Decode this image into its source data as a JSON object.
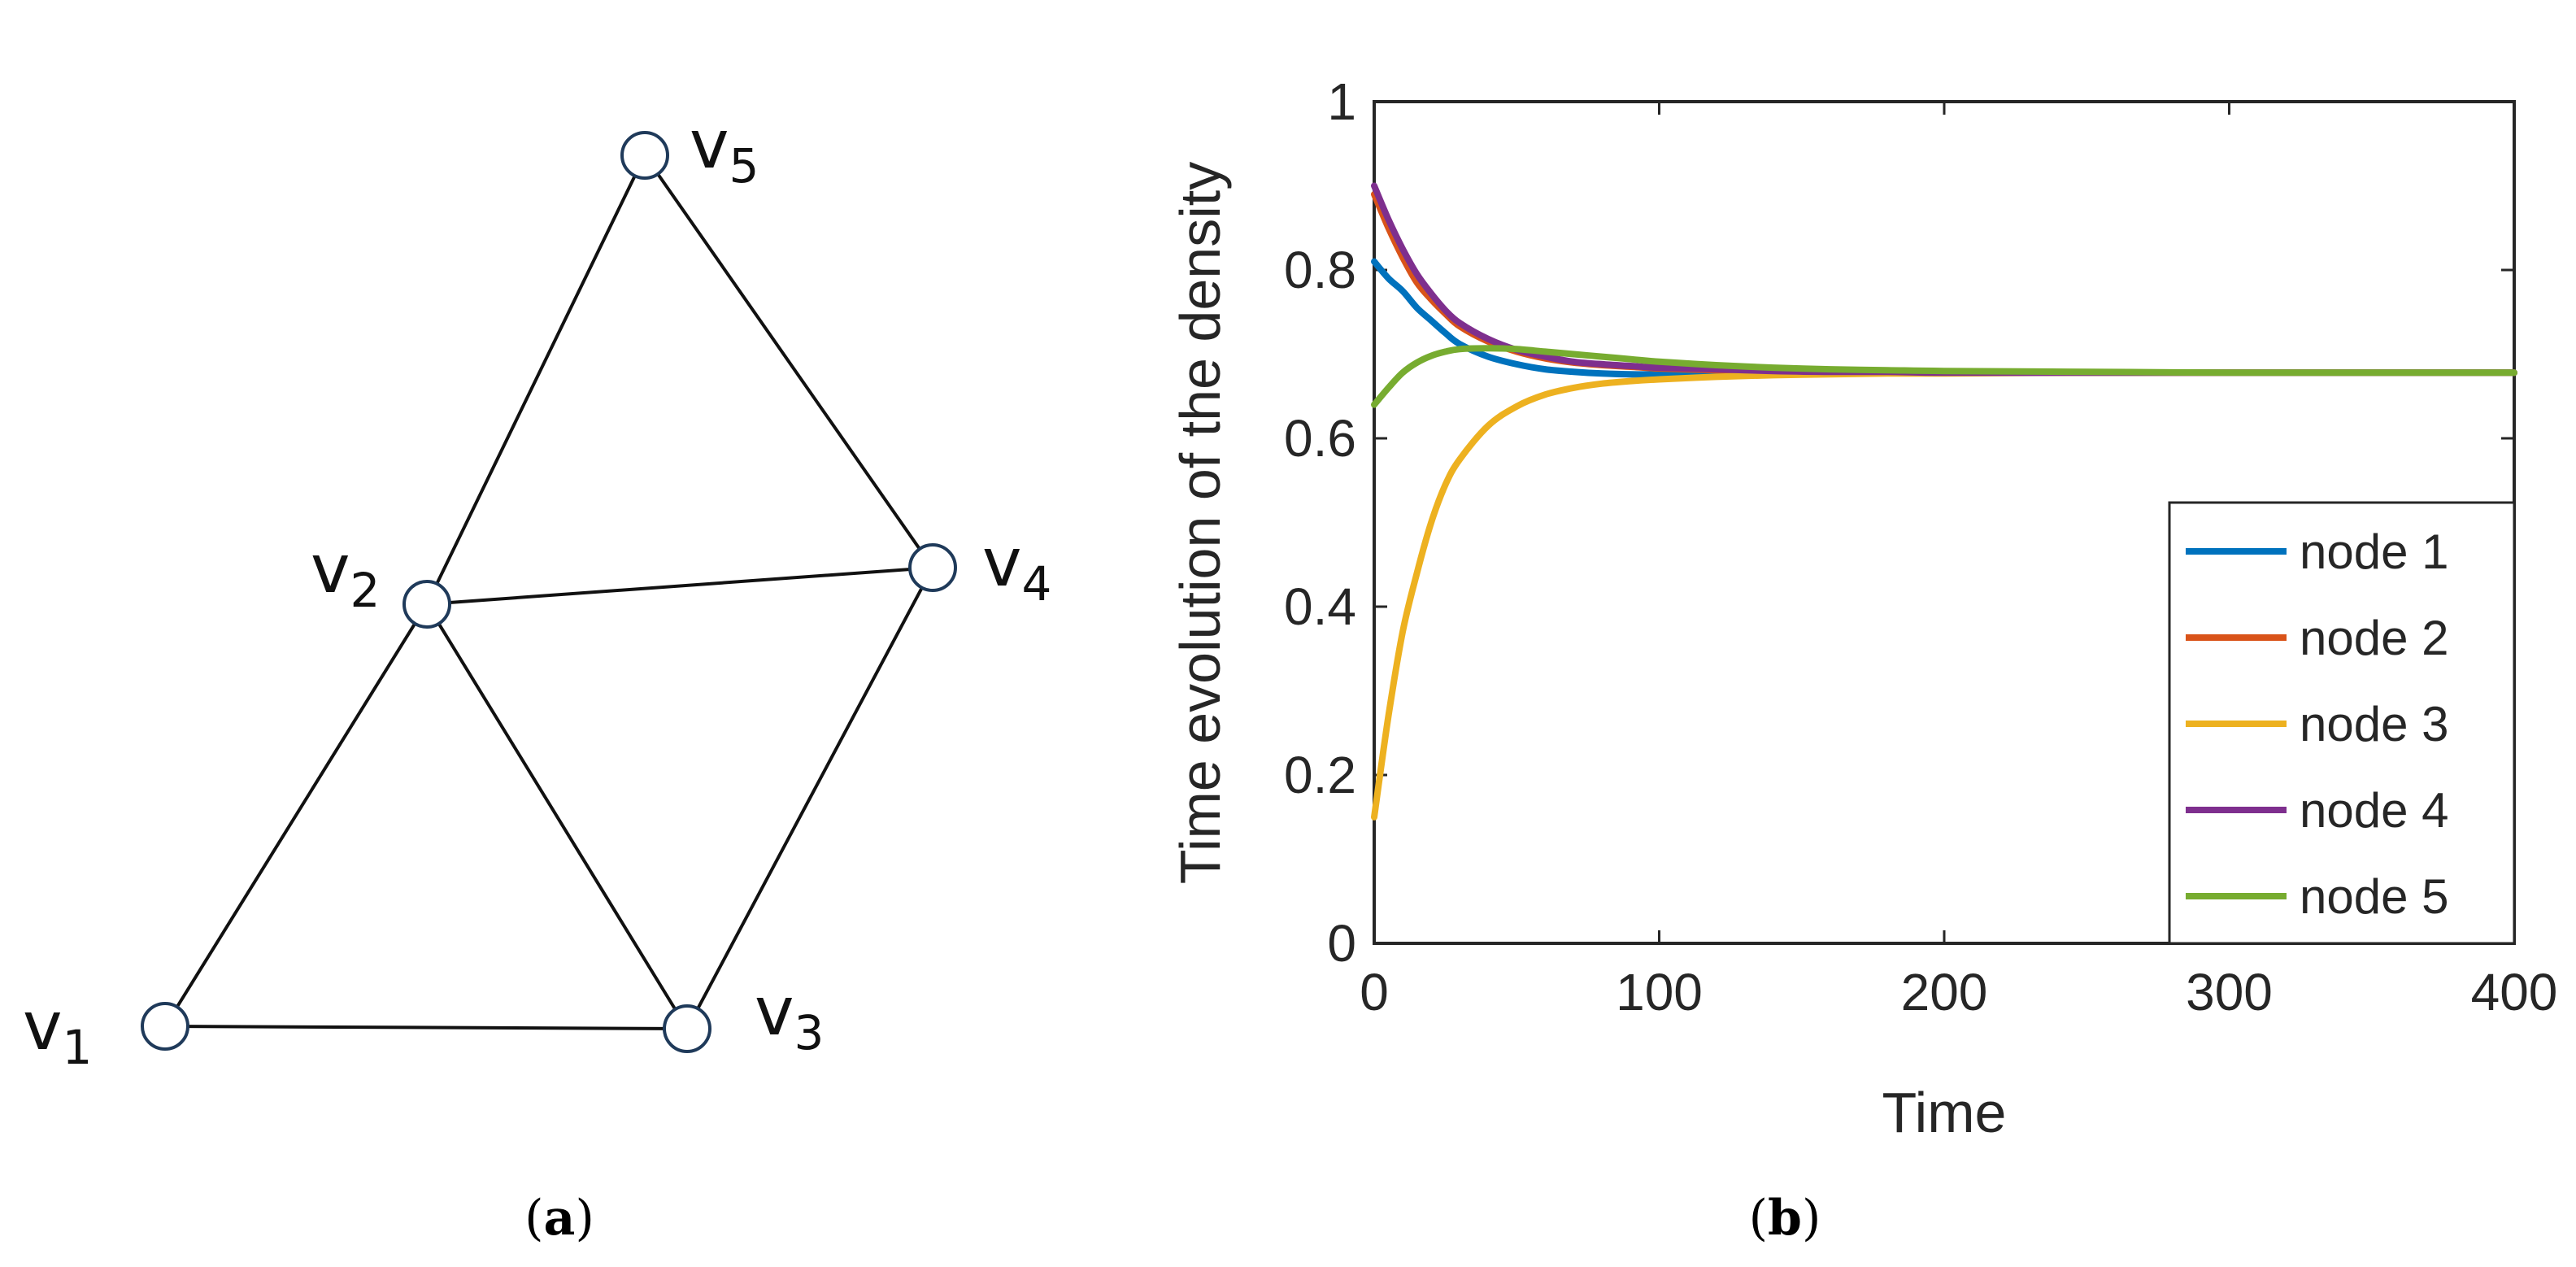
{
  "panel_a": {
    "caption_open": "(",
    "caption_letter": "a",
    "caption_close": ")",
    "nodes": [
      {
        "id": "v1",
        "letter": "v",
        "sub": "1"
      },
      {
        "id": "v2",
        "letter": "v",
        "sub": "2"
      },
      {
        "id": "v3",
        "letter": "v",
        "sub": "3"
      },
      {
        "id": "v4",
        "letter": "v",
        "sub": "4"
      },
      {
        "id": "v5",
        "letter": "v",
        "sub": "5"
      }
    ],
    "edges": [
      [
        "v1",
        "v2"
      ],
      [
        "v1",
        "v3"
      ],
      [
        "v2",
        "v3"
      ],
      [
        "v2",
        "v4"
      ],
      [
        "v2",
        "v5"
      ],
      [
        "v3",
        "v4"
      ],
      [
        "v4",
        "v5"
      ]
    ]
  },
  "panel_b": {
    "caption_open": "(",
    "caption_letter": "b",
    "caption_close": ")"
  },
  "chart_data": {
    "type": "line",
    "title": "",
    "xlabel": "Time",
    "ylabel": "Time evolution of the density",
    "xlim": [
      0,
      400
    ],
    "ylim": [
      0,
      1
    ],
    "xticks": [
      "0",
      "100",
      "200",
      "300",
      "400"
    ],
    "yticks": [
      "0",
      "0.2",
      "0.4",
      "0.6",
      "0.8",
      "1"
    ],
    "legend_position": "bottom-right",
    "grid": false,
    "x": [
      0,
      5,
      10,
      15,
      20,
      25,
      30,
      40,
      50,
      60,
      70,
      80,
      90,
      100,
      120,
      140,
      160,
      180,
      200,
      250,
      300,
      350,
      400
    ],
    "series": [
      {
        "name": "node 1",
        "color": "#0072BD",
        "values": [
          0.81,
          0.79,
          0.775,
          0.755,
          0.74,
          0.725,
          0.712,
          0.697,
          0.688,
          0.682,
          0.679,
          0.677,
          0.676,
          0.676,
          0.677,
          0.677,
          0.677,
          0.678,
          0.678,
          0.678,
          0.678,
          0.678,
          0.678
        ]
      },
      {
        "name": "node 2",
        "color": "#D95319",
        "values": [
          0.89,
          0.85,
          0.815,
          0.785,
          0.765,
          0.748,
          0.733,
          0.715,
          0.703,
          0.695,
          0.69,
          0.687,
          0.685,
          0.683,
          0.681,
          0.68,
          0.679,
          0.679,
          0.678,
          0.678,
          0.678,
          0.678,
          0.678
        ]
      },
      {
        "name": "node 3",
        "color": "#EDB120",
        "values": [
          0.15,
          0.27,
          0.37,
          0.44,
          0.5,
          0.545,
          0.575,
          0.615,
          0.638,
          0.652,
          0.66,
          0.665,
          0.668,
          0.67,
          0.673,
          0.675,
          0.676,
          0.677,
          0.677,
          0.678,
          0.678,
          0.678,
          0.678
        ]
      },
      {
        "name": "node 4",
        "color": "#7E2F8E",
        "values": [
          0.9,
          0.86,
          0.825,
          0.795,
          0.772,
          0.752,
          0.737,
          0.718,
          0.705,
          0.697,
          0.691,
          0.688,
          0.686,
          0.684,
          0.682,
          0.68,
          0.679,
          0.679,
          0.678,
          0.678,
          0.678,
          0.678,
          0.678
        ]
      },
      {
        "name": "node 5",
        "color": "#77AC30",
        "values": [
          0.64,
          0.66,
          0.678,
          0.69,
          0.698,
          0.703,
          0.706,
          0.707,
          0.706,
          0.703,
          0.7,
          0.697,
          0.694,
          0.691,
          0.687,
          0.684,
          0.682,
          0.681,
          0.68,
          0.679,
          0.678,
          0.678,
          0.678
        ]
      }
    ]
  }
}
